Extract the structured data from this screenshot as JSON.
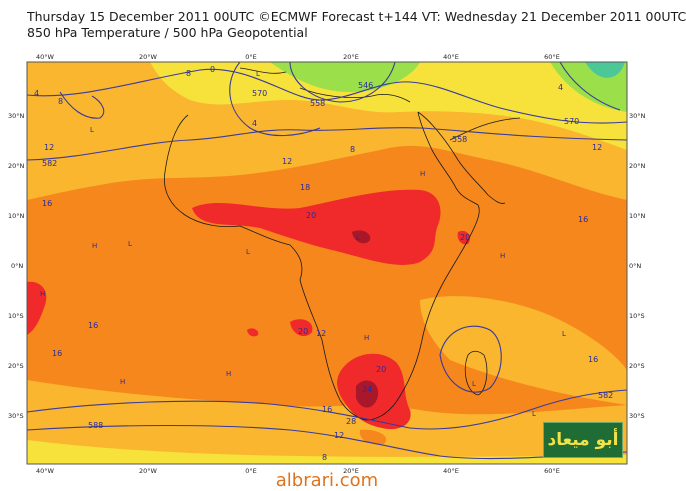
{
  "header": {
    "line1": "Thursday 15 December 2011 00UTC ©ECMWF Forecast t+144 VT: Wednesday 21 December 2011 00UTC",
    "line2": "850 hPa Temperature / 500 hPa Geopotential"
  },
  "map": {
    "lon_labels_top": [
      "40°W",
      "20°W",
      "0°E",
      "20°E",
      "40°E",
      "60°E"
    ],
    "lon_labels_bottom": [
      "40°W",
      "20°W",
      "0°E",
      "20°E",
      "40°E",
      "60°E"
    ],
    "lat_labels_left": [
      "30°N",
      "20°N",
      "10°N",
      "0°N",
      "10°S",
      "20°S",
      "30°S"
    ],
    "lat_labels_right": [
      "30°N",
      "20°N",
      "10°N",
      "0°N",
      "10°S",
      "20°S",
      "30°S"
    ],
    "colors": {
      "green": "#9be04a",
      "yellow": "#f6e23a",
      "light_orange": "#f9b62e",
      "orange": "#f6871c",
      "red": "#f02a2a",
      "dark_red": "#a8172a",
      "contour": "#3a3a9a"
    },
    "contour_labels": [
      "8",
      "8",
      "582",
      "12",
      "16",
      "570",
      "546",
      "558",
      "4",
      "8",
      "12",
      "18",
      "20",
      "20",
      "16",
      "12",
      "16",
      "20",
      "16",
      "20",
      "24",
      "28",
      "12",
      "16",
      "8",
      "588",
      "582",
      "570",
      "12",
      "16",
      "558",
      "8",
      "0",
      "4",
      "4"
    ],
    "pressure_centers": [
      "L",
      "L",
      "H",
      "H",
      "H",
      "H",
      "H",
      "L",
      "L",
      "L",
      "L",
      "H",
      "H",
      "L",
      "L"
    ]
  },
  "logo": {
    "text": "أبو ميعاد"
  },
  "footer": {
    "site": "albrari.com"
  }
}
